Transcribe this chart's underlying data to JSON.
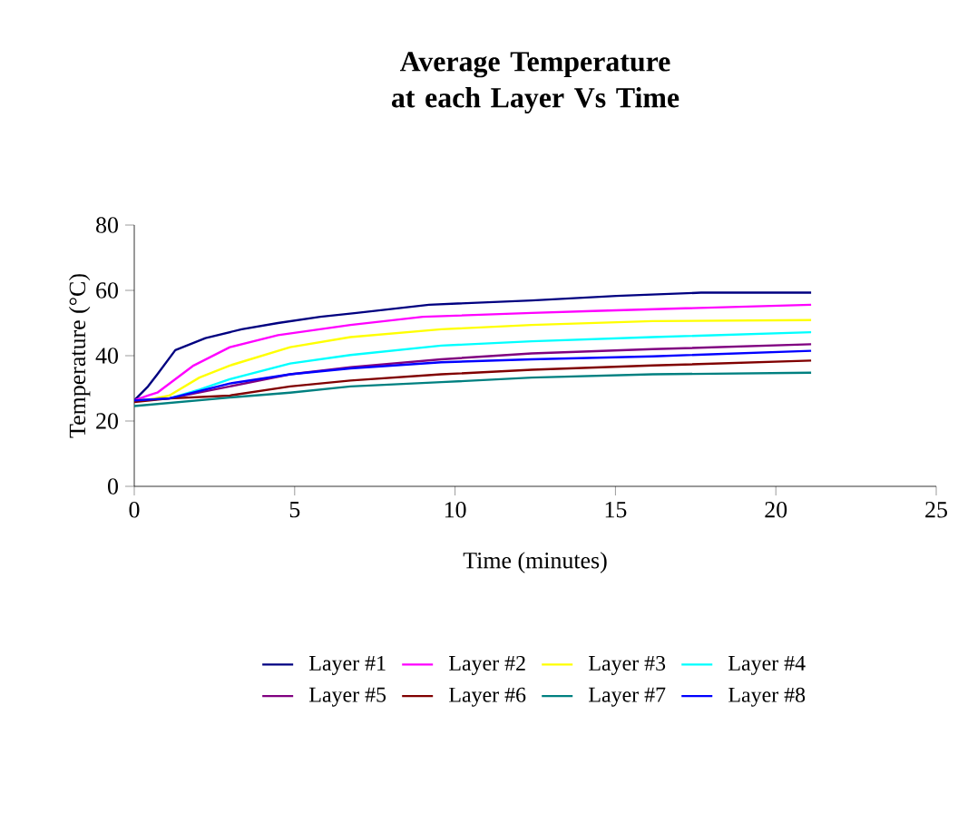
{
  "chart_data": {
    "type": "line",
    "title": "Average Temperature at each Layer Vs Time",
    "xlabel": "Time (minutes)",
    "ylabel": "Temperature (°C)",
    "xlim": [
      0,
      25
    ],
    "xticks": [
      0,
      5,
      10,
      15,
      20,
      25
    ],
    "ylim": [
      0,
      80
    ],
    "yticks": [
      0,
      20,
      40,
      60,
      80
    ],
    "grid": false,
    "legend": "bottom",
    "marker": "none",
    "line_style": "solid",
    "series": [
      {
        "name": "Layer #1",
        "color": "#000080",
        "x": [
          0,
          0.43,
          0.72,
          1.28,
          2.22,
          3.35,
          4.48,
          5.8,
          6.93,
          9.19,
          12.39,
          15.03,
          17.67,
          21.1
        ],
        "values": [
          26.3,
          30.6,
          34.3,
          41.7,
          45.4,
          48.1,
          50,
          51.9,
          53.1,
          55.6,
          56.9,
          58.3,
          59.3,
          59.3
        ]
      },
      {
        "name": "Layer #2",
        "color": "#ff00ff",
        "x": [
          0,
          0.43,
          0.72,
          1.85,
          2.98,
          4.48,
          6.74,
          9.0,
          12.39,
          14.3,
          21.1
        ],
        "values": [
          26.3,
          27.8,
          28.7,
          37,
          42.6,
          46.3,
          49.4,
          51.9,
          53.1,
          53.7,
          55.6
        ]
      },
      {
        "name": "Layer #3",
        "color": "#ffff00",
        "x": [
          0,
          0.43,
          1.09,
          2.03,
          2.98,
          4.86,
          6.74,
          9.57,
          12.39,
          16.16,
          21.1
        ],
        "values": [
          26.3,
          26.5,
          27.8,
          33.3,
          37,
          42.6,
          45.7,
          48.1,
          49.4,
          50.6,
          50.9
        ]
      },
      {
        "name": "Layer #4",
        "color": "#00ffff",
        "x": [
          0,
          1.09,
          2.03,
          2.98,
          4.86,
          6.74,
          9.57,
          12.39,
          16.16,
          21.1
        ],
        "values": [
          26.3,
          26.9,
          29.6,
          32.8,
          37.6,
          40.2,
          43.1,
          44.4,
          45.7,
          47.2
        ]
      },
      {
        "name": "Layer #5",
        "color": "#800080",
        "x": [
          0,
          1.09,
          2.98,
          4.86,
          6.74,
          9.57,
          12.39,
          16.16,
          21.1
        ],
        "values": [
          26.3,
          26.9,
          30.6,
          34.3,
          36.5,
          38.9,
          40.7,
          42,
          43.5
        ]
      },
      {
        "name": "Layer #6",
        "color": "#800000",
        "x": [
          0,
          1.09,
          2.98,
          4.86,
          6.74,
          9.57,
          12.39,
          16.16,
          21.1
        ],
        "values": [
          25.8,
          26.9,
          27.8,
          30.6,
          32.4,
          34.3,
          35.7,
          37,
          38.5
        ]
      },
      {
        "name": "Layer #7",
        "color": "#008080",
        "x": [
          0,
          2.98,
          4.86,
          6.74,
          9.57,
          12.39,
          16.16,
          21.1
        ],
        "values": [
          24.6,
          27.2,
          28.7,
          30.6,
          31.9,
          33.3,
          34.3,
          34.8
        ]
      },
      {
        "name": "Layer #8",
        "color": "#0000ff",
        "x": [
          0,
          1.09,
          2.98,
          4.86,
          6.74,
          9.57,
          12.39,
          16.16,
          21.1
        ],
        "values": [
          26.3,
          26.9,
          31.5,
          34.3,
          36.1,
          38,
          38.9,
          39.8,
          41.5
        ]
      }
    ]
  }
}
